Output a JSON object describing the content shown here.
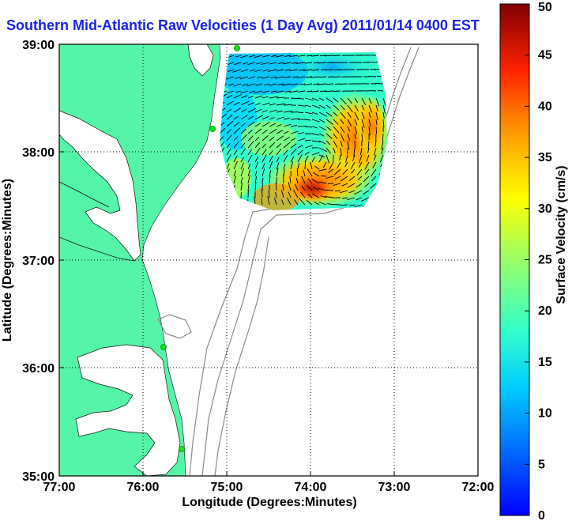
{
  "title": "Southern Mid-Atlantic Raw Velocities (1 Day Avg) 2011/01/14 0400 EST",
  "xlabel": "Longitude (Degrees:Minutes)",
  "ylabel": "Latitude (Degrees:Minutes)",
  "x_ticks": [
    "77:00",
    "76:00",
    "75:00",
    "74:00",
    "73:00",
    "72:00"
  ],
  "y_ticks": [
    "39:00",
    "38:00",
    "37:00",
    "36:00",
    "35:00"
  ],
  "colorbar": {
    "label": "Surface Velocity (cm/s)",
    "ticks": [
      "50",
      "45",
      "40",
      "35",
      "30",
      "25",
      "20",
      "15",
      "10",
      "5",
      "0"
    ],
    "min": 0,
    "max": 50
  },
  "colors": {
    "land": "#55f5a8",
    "water": "#ffffff",
    "title": "#1a22e6",
    "bathymetry": "#8a8a8a",
    "station": "#22dd22"
  },
  "map": {
    "lon_range": [
      -77,
      -72
    ],
    "lat_range": [
      35,
      39
    ],
    "grid": true,
    "grid_style": "dotted"
  }
}
